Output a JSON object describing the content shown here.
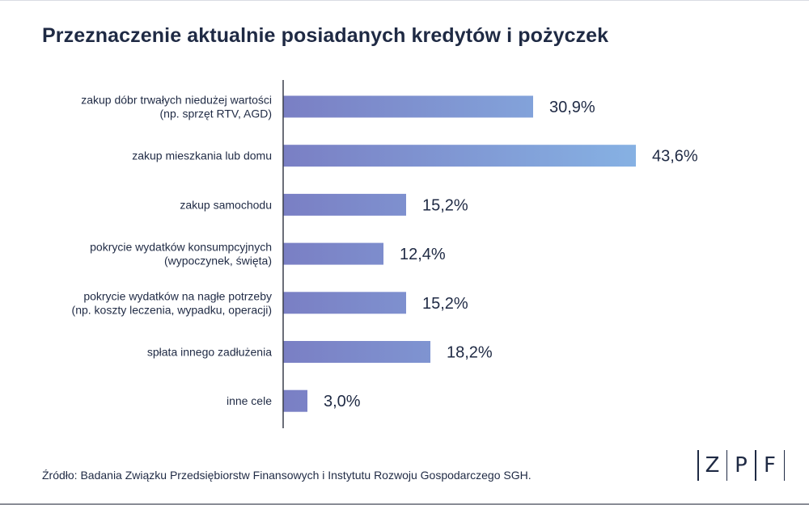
{
  "title": "Przeznaczenie aktualnie posiadanych kredytów i pożyczek",
  "source": "Źródło: Badania Związku Przedsiębiorstw Finansowych i Instytutu Rozwoju Gospodarczego SGH.",
  "logo": {
    "letters": [
      "Z",
      "P",
      "F"
    ]
  },
  "colors": {
    "bar_start": "#7a7fc4",
    "bar_end": "#86b1e3",
    "text": "#1f2a44",
    "axis": "#3a3f4b"
  },
  "chart_data": {
    "type": "bar",
    "orientation": "horizontal",
    "title": "Przeznaczenie aktualnie posiadanych kredytów i pożyczek",
    "categories": [
      [
        "zakup dóbr trwałych niedużej wartości",
        "(np. sprzęt RTV, AGD)"
      ],
      [
        "zakup mieszkania lub domu"
      ],
      [
        "zakup samochodu"
      ],
      [
        "pokrycie wydatków konsumpcyjnych",
        "(wypoczynek, święta)"
      ],
      [
        "pokrycie wydatków na nagłe potrzeby",
        "(np. koszty leczenia, wypadku, operacji)"
      ],
      [
        "spłata innego zadłużenia"
      ],
      [
        "inne cele"
      ]
    ],
    "values": [
      30.9,
      43.6,
      15.2,
      12.4,
      15.2,
      18.2,
      3.0
    ],
    "value_labels": [
      "30,9%",
      "43,6%",
      "15,2%",
      "12,4%",
      "15,2%",
      "18,2%",
      "3,0%"
    ],
    "xlim": [
      0,
      43.6
    ],
    "grid": false,
    "legend": "none"
  }
}
